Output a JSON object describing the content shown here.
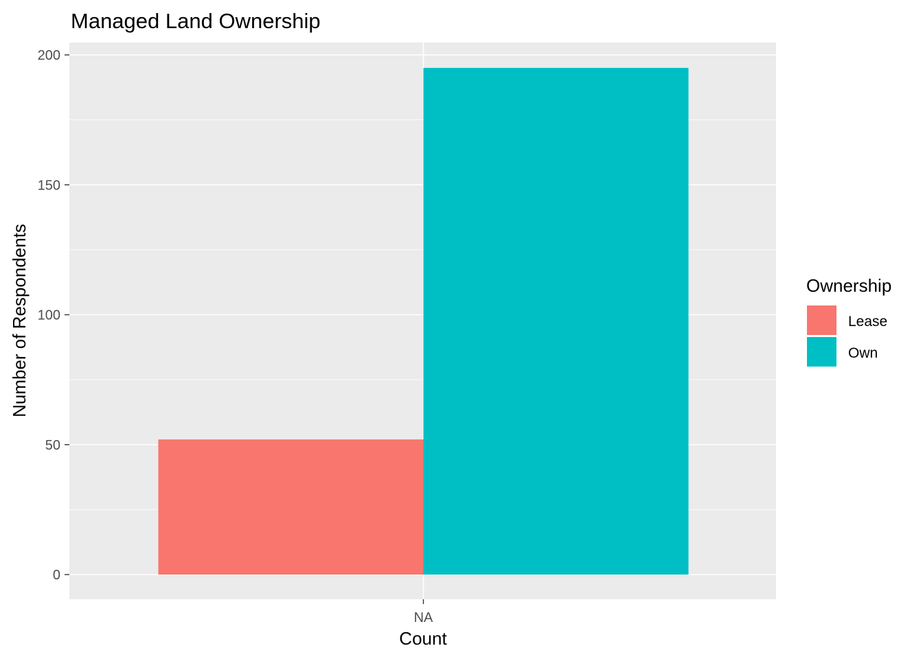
{
  "chart_data": {
    "type": "bar",
    "title": "Managed Land Ownership",
    "xlabel": "Count",
    "ylabel": "Number of Respondents",
    "categories": [
      "NA"
    ],
    "series": [
      {
        "name": "Lease",
        "values": [
          52
        ],
        "color": "#F8766D"
      },
      {
        "name": "Own",
        "values": [
          195
        ],
        "color": "#00BFC4"
      }
    ],
    "ylim": [
      0,
      205
    ],
    "yticks": [
      0,
      50,
      100,
      150,
      200
    ],
    "ytick_labels": [
      "0",
      "50",
      "100",
      "150",
      "200"
    ],
    "legend": {
      "title": "Ownership",
      "placement": "right"
    },
    "grid": true,
    "panel_background": "#EBEBEB",
    "grid_color": "#FFFFFF"
  }
}
